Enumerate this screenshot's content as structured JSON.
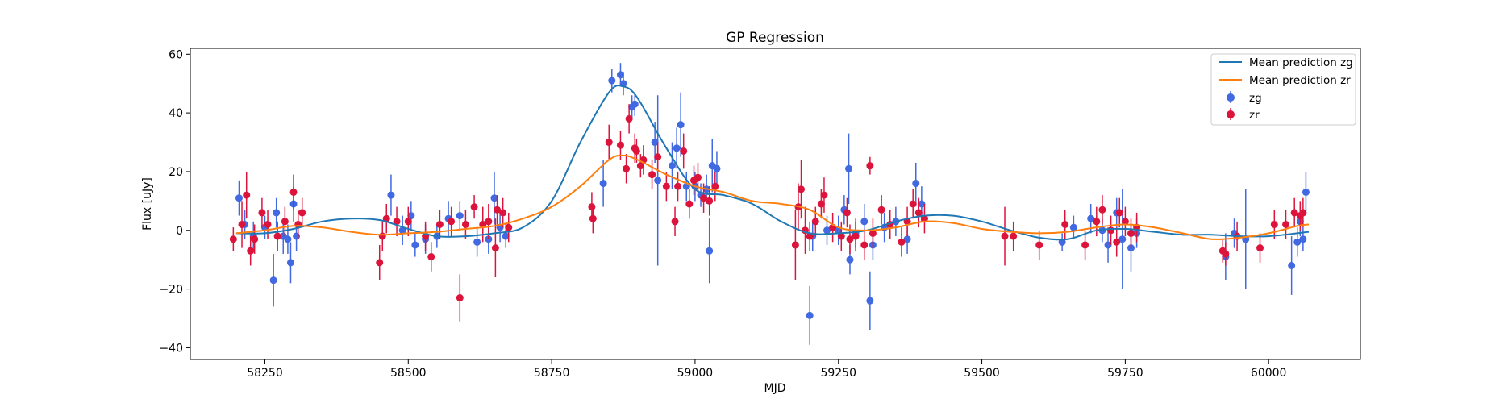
{
  "chart_data": {
    "type": "scatter",
    "title": "GP Regression",
    "xlabel": "MJD",
    "ylabel": "Flux [uJy]",
    "xlim": [
      58120,
      60160
    ],
    "ylim": [
      -44,
      62
    ],
    "x_ticks": [
      58250,
      58500,
      58750,
      59000,
      59250,
      59500,
      59750,
      60000
    ],
    "y_ticks": [
      -40,
      -20,
      0,
      20,
      40,
      60
    ],
    "grid": false,
    "legend_position": "top-right",
    "colors": {
      "zg_line": "#1f77b4",
      "zr_line": "#ff7f0e",
      "zg_points": "#4169e1",
      "zr_points": "#dc143c"
    },
    "lines": [
      {
        "name": "Mean prediction zg",
        "x": [
          58200,
          58250,
          58300,
          58350,
          58400,
          58450,
          58500,
          58550,
          58600,
          58650,
          58700,
          58750,
          58800,
          58850,
          58875,
          58900,
          58950,
          59000,
          59050,
          59100,
          59150,
          59200,
          59250,
          59300,
          59350,
          59400,
          59450,
          59500,
          59550,
          59600,
          59650,
          59700,
          59750,
          59800,
          59850,
          59900,
          59950,
          60000,
          60050,
          60070
        ],
        "y": [
          -1,
          -1,
          0.5,
          3,
          4,
          3.5,
          0.5,
          -2,
          -2,
          -1,
          1,
          10,
          30,
          47,
          49,
          45,
          28,
          14,
          12,
          9,
          3,
          -1,
          -1,
          0,
          3,
          5,
          5,
          3,
          0,
          -2.5,
          -3,
          0,
          0.5,
          -0.5,
          -1.5,
          -1.5,
          -2,
          -2,
          -1,
          -0.5
        ]
      },
      {
        "name": "Mean prediction zr",
        "x": [
          58200,
          58250,
          58300,
          58350,
          58400,
          58450,
          58500,
          58550,
          58600,
          58650,
          58700,
          58750,
          58800,
          58850,
          58875,
          58900,
          58950,
          59000,
          59050,
          59100,
          59150,
          59200,
          59250,
          59300,
          59350,
          59400,
          59450,
          59500,
          59550,
          59600,
          59650,
          59700,
          59750,
          59800,
          59850,
          59900,
          59950,
          60000,
          60050,
          60070
        ],
        "y": [
          -1,
          0,
          1.5,
          1,
          -0.5,
          -1.5,
          -1,
          -0.5,
          0.5,
          1.5,
          4,
          8,
          15,
          24,
          25.5,
          24,
          19,
          15,
          13,
          10,
          9,
          7,
          1,
          0,
          1,
          3,
          2.5,
          0.5,
          -0.5,
          -1,
          -0.5,
          1,
          2,
          1,
          -1,
          -3,
          -2.5,
          -1,
          1.5,
          2
        ]
      }
    ],
    "series": [
      {
        "name": "zg",
        "points": [
          [
            58205,
            11,
            6
          ],
          [
            58215,
            2,
            5
          ],
          [
            58230,
            -2,
            5
          ],
          [
            58250,
            1,
            4
          ],
          [
            58265,
            -17,
            9
          ],
          [
            58270,
            6,
            5
          ],
          [
            58282,
            -2,
            6
          ],
          [
            58290,
            -3,
            5
          ],
          [
            58295,
            -11,
            7
          ],
          [
            58300,
            9,
            6
          ],
          [
            58305,
            -2,
            5
          ],
          [
            58470,
            12,
            7
          ],
          [
            58490,
            0,
            5
          ],
          [
            58505,
            5,
            5
          ],
          [
            58512,
            -5,
            4
          ],
          [
            58530,
            -3,
            5
          ],
          [
            58550,
            -2,
            4
          ],
          [
            58570,
            4,
            6
          ],
          [
            58590,
            5,
            5
          ],
          [
            58620,
            -4,
            5
          ],
          [
            58640,
            -3,
            5
          ],
          [
            58650,
            11,
            9
          ],
          [
            58660,
            1,
            5
          ],
          [
            58670,
            -2,
            4
          ],
          [
            58840,
            16,
            8
          ],
          [
            58855,
            51,
            4
          ],
          [
            58870,
            53,
            4
          ],
          [
            58875,
            50,
            4
          ],
          [
            58890,
            42,
            4
          ],
          [
            58895,
            43,
            4
          ],
          [
            58930,
            30,
            7
          ],
          [
            58935,
            17,
            29
          ],
          [
            58960,
            22,
            8
          ],
          [
            58968,
            28,
            7
          ],
          [
            58975,
            36,
            11
          ],
          [
            58985,
            15,
            5
          ],
          [
            59000,
            15,
            5
          ],
          [
            59010,
            12,
            4
          ],
          [
            59020,
            14,
            5
          ],
          [
            59025,
            -7,
            11
          ],
          [
            59030,
            22,
            9
          ],
          [
            59038,
            21,
            6
          ],
          [
            59200,
            -29,
            10
          ],
          [
            59205,
            -2,
            5
          ],
          [
            59230,
            0,
            5
          ],
          [
            59250,
            0,
            5
          ],
          [
            59260,
            7,
            5
          ],
          [
            59268,
            21,
            12
          ],
          [
            59270,
            -10,
            5
          ],
          [
            59280,
            -1,
            5
          ],
          [
            59295,
            3,
            6
          ],
          [
            59305,
            -24,
            10
          ],
          [
            59310,
            -5,
            5
          ],
          [
            59330,
            1,
            5
          ],
          [
            59350,
            3,
            5
          ],
          [
            59370,
            -3,
            5
          ],
          [
            59385,
            16,
            7
          ],
          [
            59395,
            9,
            6
          ],
          [
            59640,
            -4,
            3
          ],
          [
            59660,
            1,
            4
          ],
          [
            59690,
            4,
            5
          ],
          [
            59710,
            0,
            4
          ],
          [
            59720,
            -5,
            6
          ],
          [
            59735,
            6,
            5
          ],
          [
            59745,
            -3,
            17
          ],
          [
            59760,
            -6,
            8
          ],
          [
            59770,
            -1,
            5
          ],
          [
            59925,
            -9,
            8
          ],
          [
            59940,
            -1,
            5
          ],
          [
            59960,
            -3,
            17
          ],
          [
            60040,
            -12,
            10
          ],
          [
            60050,
            -4,
            5
          ],
          [
            60055,
            3,
            5
          ],
          [
            60060,
            -3,
            4
          ],
          [
            60065,
            13,
            7
          ]
        ]
      },
      {
        "name": "zr",
        "points": [
          [
            58195,
            -3,
            4
          ],
          [
            58210,
            2,
            8
          ],
          [
            58218,
            12,
            8
          ],
          [
            58225,
            -7,
            5
          ],
          [
            58232,
            -3,
            5
          ],
          [
            58245,
            6,
            5
          ],
          [
            58255,
            2,
            5
          ],
          [
            58272,
            -2,
            5
          ],
          [
            58285,
            3,
            5
          ],
          [
            58300,
            13,
            6
          ],
          [
            58308,
            2,
            5
          ],
          [
            58315,
            6,
            5
          ],
          [
            58450,
            -11,
            6
          ],
          [
            58455,
            -2,
            5
          ],
          [
            58462,
            4,
            5
          ],
          [
            58480,
            3,
            5
          ],
          [
            58500,
            3,
            5
          ],
          [
            58530,
            -2,
            5
          ],
          [
            58540,
            -9,
            5
          ],
          [
            58555,
            2,
            5
          ],
          [
            58575,
            3,
            5
          ],
          [
            58590,
            -23,
            8
          ],
          [
            58600,
            2,
            5
          ],
          [
            58615,
            8,
            4
          ],
          [
            58630,
            2,
            6
          ],
          [
            58640,
            3,
            6
          ],
          [
            58652,
            -6,
            10
          ],
          [
            58655,
            7,
            5
          ],
          [
            58665,
            6,
            5
          ],
          [
            58675,
            1,
            5
          ],
          [
            58820,
            8,
            5
          ],
          [
            58822,
            4,
            5
          ],
          [
            58850,
            30,
            6
          ],
          [
            58870,
            29,
            5
          ],
          [
            58880,
            21,
            5
          ],
          [
            58885,
            38,
            5
          ],
          [
            58895,
            28,
            5
          ],
          [
            58898,
            27,
            4
          ],
          [
            58905,
            22,
            4
          ],
          [
            58910,
            24,
            5
          ],
          [
            58925,
            19,
            5
          ],
          [
            58935,
            25,
            5
          ],
          [
            58950,
            15,
            5
          ],
          [
            58965,
            3,
            5
          ],
          [
            58970,
            15,
            5
          ],
          [
            58980,
            27,
            6
          ],
          [
            58990,
            9,
            5
          ],
          [
            58998,
            17,
            5
          ],
          [
            59005,
            18,
            5
          ],
          [
            59015,
            11,
            5
          ],
          [
            59025,
            10,
            5
          ],
          [
            59035,
            15,
            5
          ],
          [
            59175,
            -5,
            12
          ],
          [
            59180,
            8,
            8
          ],
          [
            59185,
            14,
            10
          ],
          [
            59192,
            0,
            8
          ],
          [
            59200,
            -2,
            5
          ],
          [
            59210,
            3,
            5
          ],
          [
            59220,
            9,
            5
          ],
          [
            59225,
            12,
            6
          ],
          [
            59240,
            1,
            5
          ],
          [
            59255,
            -2,
            5
          ],
          [
            59265,
            6,
            5
          ],
          [
            59270,
            -3,
            5
          ],
          [
            59280,
            -2,
            5
          ],
          [
            59295,
            -5,
            5
          ],
          [
            59305,
            22,
            3
          ],
          [
            59310,
            -1,
            5
          ],
          [
            59325,
            7,
            5
          ],
          [
            59340,
            2,
            5
          ],
          [
            59360,
            -4,
            5
          ],
          [
            59370,
            3,
            5
          ],
          [
            59380,
            9,
            5
          ],
          [
            59390,
            6,
            5
          ],
          [
            59400,
            4,
            5
          ],
          [
            59540,
            -2,
            10
          ],
          [
            59555,
            -2,
            5
          ],
          [
            59600,
            -5,
            5
          ],
          [
            59645,
            2,
            5
          ],
          [
            59680,
            -5,
            5
          ],
          [
            59700,
            3,
            5
          ],
          [
            59710,
            7,
            5
          ],
          [
            59725,
            0,
            5
          ],
          [
            59735,
            -4,
            5
          ],
          [
            59740,
            6,
            5
          ],
          [
            59750,
            3,
            5
          ],
          [
            59760,
            -1,
            5
          ],
          [
            59770,
            1,
            5
          ],
          [
            59920,
            -7,
            4
          ],
          [
            59925,
            -8,
            4
          ],
          [
            59945,
            -2,
            5
          ],
          [
            59985,
            -6,
            5
          ],
          [
            60010,
            2,
            5
          ],
          [
            60030,
            2,
            5
          ],
          [
            60045,
            6,
            5
          ],
          [
            60055,
            5,
            5
          ],
          [
            60060,
            6,
            5
          ]
        ]
      }
    ]
  }
}
